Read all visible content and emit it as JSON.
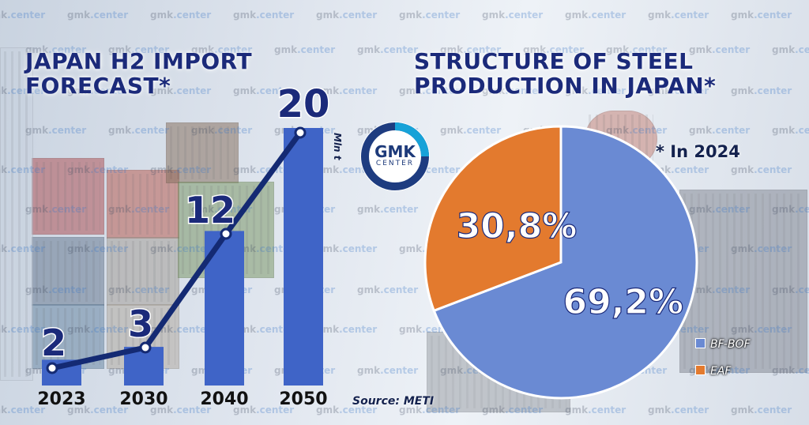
{
  "watermark": {
    "prefix": "gmk",
    "suffix": ".center"
  },
  "left_title_line1": "JAPAN H2 IMPORT",
  "left_title_line2": "FORECAST*",
  "right_title_line1": "STRUCTURE OF STEEL",
  "right_title_line2": "PRODUCTION IN JAPAN*",
  "year_note": "* In 2024",
  "unit_label": "Mln t",
  "source": "Source: METI",
  "logo": {
    "main": "GMK",
    "sub": "CENTER",
    "color_ring": "#1e3c80",
    "color_accent": "#17a2d8"
  },
  "colors": {
    "bar": "#3f64c7",
    "line": "#142a73",
    "bf_bof": "#6a8ad3",
    "eaf": "#e37a2e",
    "title": "#1b2a7a"
  },
  "chart_data": [
    {
      "type": "bar",
      "categories": [
        "2023",
        "2030",
        "2040",
        "2050"
      ],
      "values": [
        2,
        3,
        12,
        20
      ],
      "data_labels": [
        "2",
        "3",
        "12",
        "20"
      ],
      "ylim": [
        0,
        20
      ],
      "overlay_line": true
    },
    {
      "type": "pie",
      "labels": [
        "BF-BOF",
        "EAF"
      ],
      "values": [
        69.2,
        30.8
      ],
      "data_labels": [
        "69,2%",
        "30,8%"
      ],
      "legend": "bottom-right"
    }
  ]
}
